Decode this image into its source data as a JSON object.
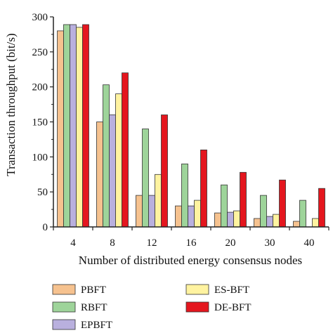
{
  "chart_data": {
    "type": "bar",
    "xlabel": "Number of distributed energy consensus nodes",
    "ylabel": "Transaction throughput (bit/s)",
    "ylim": [
      0,
      300
    ],
    "yticks": [
      "0",
      "50",
      "100",
      "150",
      "200",
      "250",
      "300"
    ],
    "categories": [
      "4",
      "8",
      "12",
      "16",
      "20",
      "30",
      "40"
    ],
    "grid": false,
    "legend_position": "bottom",
    "series": [
      {
        "name": "PBFT",
        "color": "#f6c28f",
        "values": [
          280,
          150,
          45,
          30,
          20,
          12,
          8
        ]
      },
      {
        "name": "RBFT",
        "color": "#9ed49a",
        "values": [
          289,
          203,
          140,
          90,
          60,
          45,
          38
        ]
      },
      {
        "name": "EPBFT",
        "color": "#b9b0de",
        "values": [
          289,
          160,
          45,
          30,
          21,
          15,
          0
        ]
      },
      {
        "name": "ES-BFT",
        "color": "#fff3a0",
        "values": [
          285,
          190,
          75,
          38,
          23,
          18,
          12
        ]
      },
      {
        "name": "DE-BFT",
        "color": "#e4161e",
        "values": [
          289,
          220,
          160,
          110,
          78,
          67,
          55
        ]
      }
    ]
  }
}
